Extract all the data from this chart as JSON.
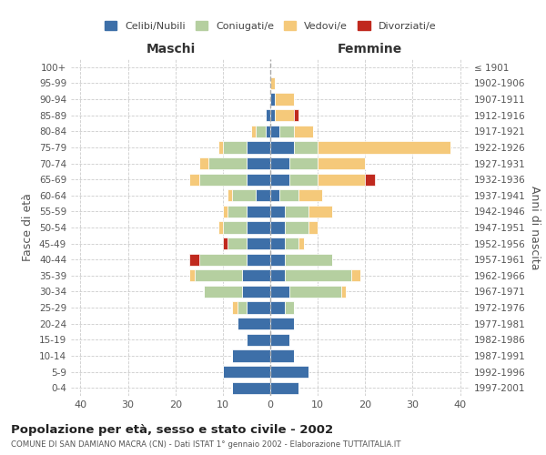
{
  "age_groups": [
    "0-4",
    "5-9",
    "10-14",
    "15-19",
    "20-24",
    "25-29",
    "30-34",
    "35-39",
    "40-44",
    "45-49",
    "50-54",
    "55-59",
    "60-64",
    "65-69",
    "70-74",
    "75-79",
    "80-84",
    "85-89",
    "90-94",
    "95-99",
    "100+"
  ],
  "birth_years": [
    "1997-2001",
    "1992-1996",
    "1987-1991",
    "1982-1986",
    "1977-1981",
    "1972-1976",
    "1967-1971",
    "1962-1966",
    "1957-1961",
    "1952-1956",
    "1947-1951",
    "1942-1946",
    "1937-1941",
    "1932-1936",
    "1927-1931",
    "1922-1926",
    "1917-1921",
    "1912-1916",
    "1907-1911",
    "1902-1906",
    "≤ 1901"
  ],
  "colors": {
    "celibi": "#3d6fa8",
    "coniugati": "#b5cfa0",
    "vedovi": "#f5c97a",
    "divorziati": "#c0291e"
  },
  "maschi": {
    "celibi": [
      8,
      10,
      8,
      5,
      7,
      5,
      6,
      6,
      5,
      5,
      5,
      5,
      3,
      5,
      5,
      5,
      1,
      1,
      0,
      0,
      0
    ],
    "coniugati": [
      0,
      0,
      0,
      0,
      0,
      2,
      8,
      10,
      10,
      4,
      5,
      4,
      5,
      10,
      8,
      5,
      2,
      0,
      0,
      0,
      0
    ],
    "vedovi": [
      0,
      0,
      0,
      0,
      0,
      1,
      0,
      1,
      0,
      0,
      1,
      1,
      1,
      2,
      2,
      1,
      1,
      0,
      0,
      0,
      0
    ],
    "divorziati": [
      0,
      0,
      0,
      0,
      0,
      0,
      0,
      0,
      2,
      1,
      0,
      0,
      0,
      0,
      0,
      0,
      0,
      0,
      0,
      0,
      0
    ]
  },
  "femmine": {
    "celibi": [
      6,
      8,
      5,
      4,
      5,
      3,
      4,
      3,
      3,
      3,
      3,
      3,
      2,
      4,
      4,
      5,
      2,
      1,
      1,
      0,
      0
    ],
    "coniugati": [
      0,
      0,
      0,
      0,
      0,
      2,
      11,
      14,
      10,
      3,
      5,
      5,
      4,
      6,
      6,
      5,
      3,
      0,
      0,
      0,
      0
    ],
    "vedovi": [
      0,
      0,
      0,
      0,
      0,
      0,
      1,
      2,
      0,
      1,
      2,
      5,
      5,
      10,
      10,
      28,
      4,
      4,
      4,
      1,
      0
    ],
    "divorziati": [
      0,
      0,
      0,
      0,
      0,
      0,
      0,
      0,
      0,
      0,
      0,
      0,
      0,
      2,
      0,
      0,
      0,
      1,
      0,
      0,
      0
    ]
  },
  "title": "Popolazione per età, sesso e stato civile - 2002",
  "subtitle": "COMUNE DI SAN DAMIANO MACRA (CN) - Dati ISTAT 1° gennaio 2002 - Elaborazione TUTTAITALIA.IT",
  "ylabel_left": "Fasce di età",
  "ylabel_right": "Anni di nascita",
  "xlabel_maschi": "Maschi",
  "xlabel_femmine": "Femmine",
  "xlim": 42,
  "legend_labels": [
    "Celibi/Nubili",
    "Coniugati/e",
    "Vedovi/e",
    "Divorziati/e"
  ],
  "bg_color": "#ffffff",
  "grid_color": "#cccccc"
}
